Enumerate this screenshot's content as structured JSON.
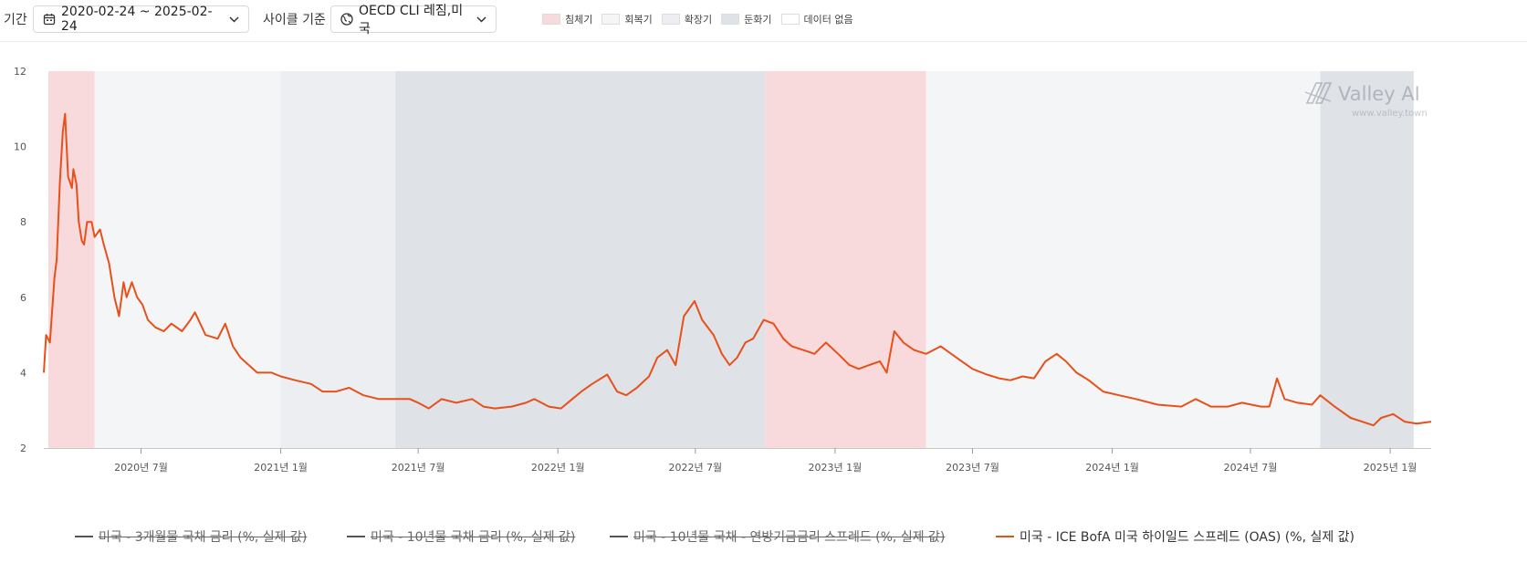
{
  "toolbar": {
    "period_label": "기간",
    "period_value": "2020-02-24 ~ 2025-02-24",
    "cycle_label": "사이클 기준",
    "cycle_value": "OECD CLI 레짐,미국",
    "regimes": [
      {
        "label": "침체기",
        "color": "#f9dadc"
      },
      {
        "label": "회복기",
        "color": "#f4f5f7"
      },
      {
        "label": "확장기",
        "color": "#eceef2"
      },
      {
        "label": "둔화기",
        "color": "#dfe2e7"
      },
      {
        "label": "데이터 없음",
        "color": "#ffffff"
      }
    ]
  },
  "watermark": {
    "brand": "Valley AI",
    "url": "www.valley.town"
  },
  "chart_data": {
    "type": "line",
    "x_start": "2020-02-24",
    "x_end": "2025-02-24",
    "ylim": [
      2,
      12
    ],
    "yticks": [
      2,
      4,
      6,
      8,
      10,
      12
    ],
    "xticks": [
      {
        "date": "2020-07-01",
        "label": "2020년 7월"
      },
      {
        "date": "2021-01-01",
        "label": "2021년 1월"
      },
      {
        "date": "2021-07-01",
        "label": "2021년 7월"
      },
      {
        "date": "2022-01-01",
        "label": "2022년 1월"
      },
      {
        "date": "2022-07-01",
        "label": "2022년 7월"
      },
      {
        "date": "2023-01-01",
        "label": "2023년 1월"
      },
      {
        "date": "2023-07-01",
        "label": "2023년 7월"
      },
      {
        "date": "2024-01-01",
        "label": "2024년 1월"
      },
      {
        "date": "2024-07-01",
        "label": "2024년 7월"
      },
      {
        "date": "2025-01-01",
        "label": "2025년 1월"
      }
    ],
    "regime_bands": [
      {
        "regime": "침체기",
        "start": "2020-03-01",
        "end": "2020-05-01"
      },
      {
        "regime": "회복기",
        "start": "2020-05-01",
        "end": "2021-01-01"
      },
      {
        "regime": "확장기",
        "start": "2021-01-01",
        "end": "2021-06-01"
      },
      {
        "regime": "둔화기",
        "start": "2021-06-01",
        "end": "2022-10-01"
      },
      {
        "regime": "침체기",
        "start": "2022-10-01",
        "end": "2023-05-01"
      },
      {
        "regime": "회복기",
        "start": "2023-05-01",
        "end": "2024-10-01"
      },
      {
        "regime": "둔화기",
        "start": "2024-10-01",
        "end": "2025-02-01"
      }
    ],
    "series": [
      {
        "name": "미국 - 3개월물 국채 금리 (%, 실제 값)",
        "color": "#555555",
        "visible": false
      },
      {
        "name": "미국 - 10년물 국채 금리 (%, 실제 값)",
        "color": "#555555",
        "visible": false
      },
      {
        "name": "미국 - 10년물 국채 - 연방기금금리 스프레드 (%, 실제 값)",
        "color": "#555555",
        "visible": false
      },
      {
        "name": "미국 - ICE BofA 미국 하이일드 스프레드 (OAS) (%, 실제 값)",
        "color": "#e8501a",
        "visible": true,
        "points": [
          [
            "2020-02-24",
            4.0
          ],
          [
            "2020-02-27",
            5.0
          ],
          [
            "2020-03-03",
            4.8
          ],
          [
            "2020-03-09",
            6.5
          ],
          [
            "2020-03-12",
            7.0
          ],
          [
            "2020-03-16",
            9.0
          ],
          [
            "2020-03-20",
            10.4
          ],
          [
            "2020-03-23",
            10.87
          ],
          [
            "2020-03-27",
            9.2
          ],
          [
            "2020-04-01",
            8.9
          ],
          [
            "2020-04-03",
            9.4
          ],
          [
            "2020-04-07",
            9.0
          ],
          [
            "2020-04-10",
            8.0
          ],
          [
            "2020-04-14",
            7.5
          ],
          [
            "2020-04-17",
            7.4
          ],
          [
            "2020-04-21",
            8.0
          ],
          [
            "2020-04-27",
            8.0
          ],
          [
            "2020-05-01",
            7.6
          ],
          [
            "2020-05-08",
            7.8
          ],
          [
            "2020-05-13",
            7.4
          ],
          [
            "2020-05-20",
            6.9
          ],
          [
            "2020-05-27",
            6.0
          ],
          [
            "2020-06-02",
            5.5
          ],
          [
            "2020-06-08",
            6.4
          ],
          [
            "2020-06-12",
            6.0
          ],
          [
            "2020-06-19",
            6.4
          ],
          [
            "2020-06-26",
            6.0
          ],
          [
            "2020-07-03",
            5.8
          ],
          [
            "2020-07-10",
            5.4
          ],
          [
            "2020-07-20",
            5.2
          ],
          [
            "2020-07-31",
            5.1
          ],
          [
            "2020-08-10",
            5.3
          ],
          [
            "2020-08-24",
            5.1
          ],
          [
            "2020-09-04",
            5.4
          ],
          [
            "2020-09-10",
            5.6
          ],
          [
            "2020-09-24",
            5.0
          ],
          [
            "2020-10-10",
            4.9
          ],
          [
            "2020-10-20",
            5.3
          ],
          [
            "2020-10-30",
            4.7
          ],
          [
            "2020-11-09",
            4.4
          ],
          [
            "2020-11-20",
            4.2
          ],
          [
            "2020-12-01",
            4.0
          ],
          [
            "2020-12-20",
            4.0
          ],
          [
            "2021-01-01",
            3.9
          ],
          [
            "2021-01-20",
            3.8
          ],
          [
            "2021-02-10",
            3.7
          ],
          [
            "2021-02-25",
            3.5
          ],
          [
            "2021-03-15",
            3.5
          ],
          [
            "2021-04-01",
            3.6
          ],
          [
            "2021-04-20",
            3.4
          ],
          [
            "2021-05-10",
            3.3
          ],
          [
            "2021-06-01",
            3.3
          ],
          [
            "2021-06-20",
            3.3
          ],
          [
            "2021-07-01",
            3.2
          ],
          [
            "2021-07-15",
            3.05
          ],
          [
            "2021-08-01",
            3.3
          ],
          [
            "2021-08-20",
            3.2
          ],
          [
            "2021-09-10",
            3.3
          ],
          [
            "2021-09-25",
            3.1
          ],
          [
            "2021-10-10",
            3.05
          ],
          [
            "2021-11-01",
            3.1
          ],
          [
            "2021-11-20",
            3.2
          ],
          [
            "2021-12-01",
            3.3
          ],
          [
            "2021-12-20",
            3.1
          ],
          [
            "2022-01-05",
            3.05
          ],
          [
            "2022-01-20",
            3.3
          ],
          [
            "2022-02-01",
            3.5
          ],
          [
            "2022-02-15",
            3.7
          ],
          [
            "2022-03-07",
            3.95
          ],
          [
            "2022-03-20",
            3.5
          ],
          [
            "2022-04-01",
            3.4
          ],
          [
            "2022-04-15",
            3.6
          ],
          [
            "2022-05-01",
            3.9
          ],
          [
            "2022-05-12",
            4.4
          ],
          [
            "2022-05-25",
            4.6
          ],
          [
            "2022-06-05",
            4.2
          ],
          [
            "2022-06-16",
            5.5
          ],
          [
            "2022-06-30",
            5.9
          ],
          [
            "2022-07-10",
            5.4
          ],
          [
            "2022-07-25",
            5.0
          ],
          [
            "2022-08-05",
            4.5
          ],
          [
            "2022-08-15",
            4.2
          ],
          [
            "2022-08-25",
            4.4
          ],
          [
            "2022-09-05",
            4.8
          ],
          [
            "2022-09-15",
            4.9
          ],
          [
            "2022-09-29",
            5.4
          ],
          [
            "2022-10-12",
            5.3
          ],
          [
            "2022-10-25",
            4.9
          ],
          [
            "2022-11-05",
            4.7
          ],
          [
            "2022-11-20",
            4.6
          ],
          [
            "2022-12-05",
            4.5
          ],
          [
            "2022-12-20",
            4.8
          ],
          [
            "2023-01-05",
            4.5
          ],
          [
            "2023-01-20",
            4.2
          ],
          [
            "2023-02-01",
            4.1
          ],
          [
            "2023-02-15",
            4.2
          ],
          [
            "2023-03-01",
            4.3
          ],
          [
            "2023-03-10",
            4.0
          ],
          [
            "2023-03-20",
            5.1
          ],
          [
            "2023-04-01",
            4.8
          ],
          [
            "2023-04-15",
            4.6
          ],
          [
            "2023-05-01",
            4.5
          ],
          [
            "2023-05-20",
            4.7
          ],
          [
            "2023-06-10",
            4.4
          ],
          [
            "2023-07-01",
            4.1
          ],
          [
            "2023-07-20",
            3.95
          ],
          [
            "2023-08-05",
            3.85
          ],
          [
            "2023-08-20",
            3.8
          ],
          [
            "2023-09-05",
            3.9
          ],
          [
            "2023-09-20",
            3.85
          ],
          [
            "2023-10-05",
            4.3
          ],
          [
            "2023-10-20",
            4.5
          ],
          [
            "2023-11-01",
            4.3
          ],
          [
            "2023-11-15",
            4.0
          ],
          [
            "2023-12-01",
            3.8
          ],
          [
            "2023-12-20",
            3.5
          ],
          [
            "2024-01-10",
            3.4
          ],
          [
            "2024-02-01",
            3.3
          ],
          [
            "2024-03-01",
            3.15
          ],
          [
            "2024-04-01",
            3.1
          ],
          [
            "2024-04-20",
            3.3
          ],
          [
            "2024-05-10",
            3.1
          ],
          [
            "2024-06-01",
            3.1
          ],
          [
            "2024-06-20",
            3.2
          ],
          [
            "2024-07-15",
            3.1
          ],
          [
            "2024-07-26",
            3.1
          ],
          [
            "2024-08-05",
            3.85
          ],
          [
            "2024-08-15",
            3.3
          ],
          [
            "2024-09-01",
            3.2
          ],
          [
            "2024-09-20",
            3.15
          ],
          [
            "2024-10-01",
            3.4
          ],
          [
            "2024-10-20",
            3.1
          ],
          [
            "2024-11-10",
            2.8
          ],
          [
            "2024-11-25",
            2.7
          ],
          [
            "2024-12-10",
            2.6
          ],
          [
            "2024-12-20",
            2.8
          ],
          [
            "2025-01-05",
            2.9
          ],
          [
            "2025-01-20",
            2.7
          ],
          [
            "2025-02-05",
            2.65
          ],
          [
            "2025-02-24",
            2.7
          ]
        ]
      }
    ]
  }
}
